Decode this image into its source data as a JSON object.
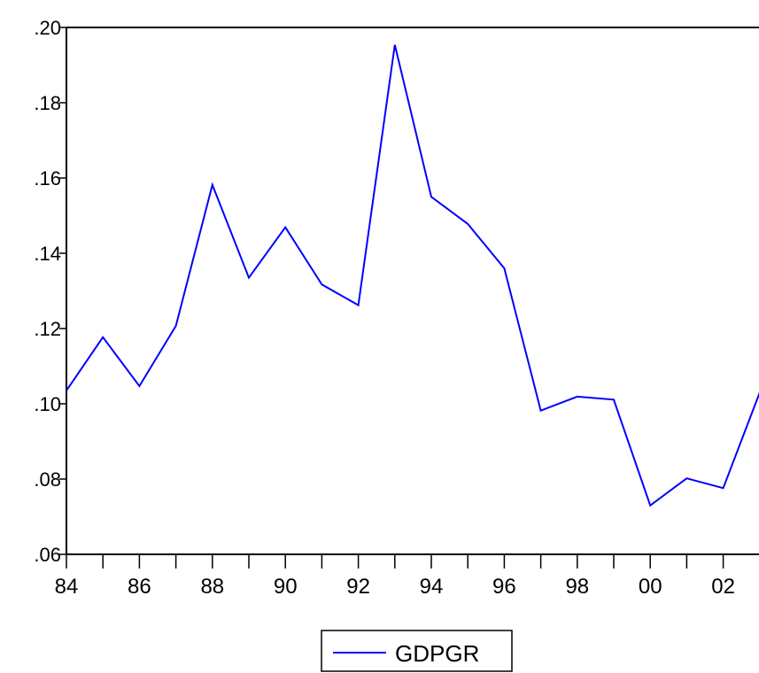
{
  "chart_data": {
    "type": "line",
    "title": "",
    "xlabel": "",
    "ylabel": "",
    "x": [
      "84",
      "85",
      "86",
      "87",
      "88",
      "89",
      "90",
      "91",
      "92",
      "93",
      "94",
      "95",
      "96",
      "97",
      "98",
      "99",
      "00",
      "01",
      "02",
      "03"
    ],
    "x_tick_labels": [
      "84",
      "86",
      "88",
      "90",
      "92",
      "94",
      "96",
      "98",
      "00",
      "02"
    ],
    "y_tick_labels": [
      ".06",
      ".08",
      ".10",
      ".12",
      ".14",
      ".16",
      ".18",
      ".20"
    ],
    "ylim": [
      0.06,
      0.2
    ],
    "grid": false,
    "legend_position": "bottom-center",
    "series": [
      {
        "name": "GDPGR",
        "color": "#0000ff",
        "values": [
          0.1035,
          0.1177,
          0.1047,
          0.1207,
          0.1582,
          0.1335,
          0.1469,
          0.1317,
          0.1262,
          0.1954,
          0.155,
          0.1478,
          0.136,
          0.0982,
          0.1019,
          0.1011,
          0.073,
          0.0802,
          0.0776,
          0.103
        ]
      }
    ]
  }
}
